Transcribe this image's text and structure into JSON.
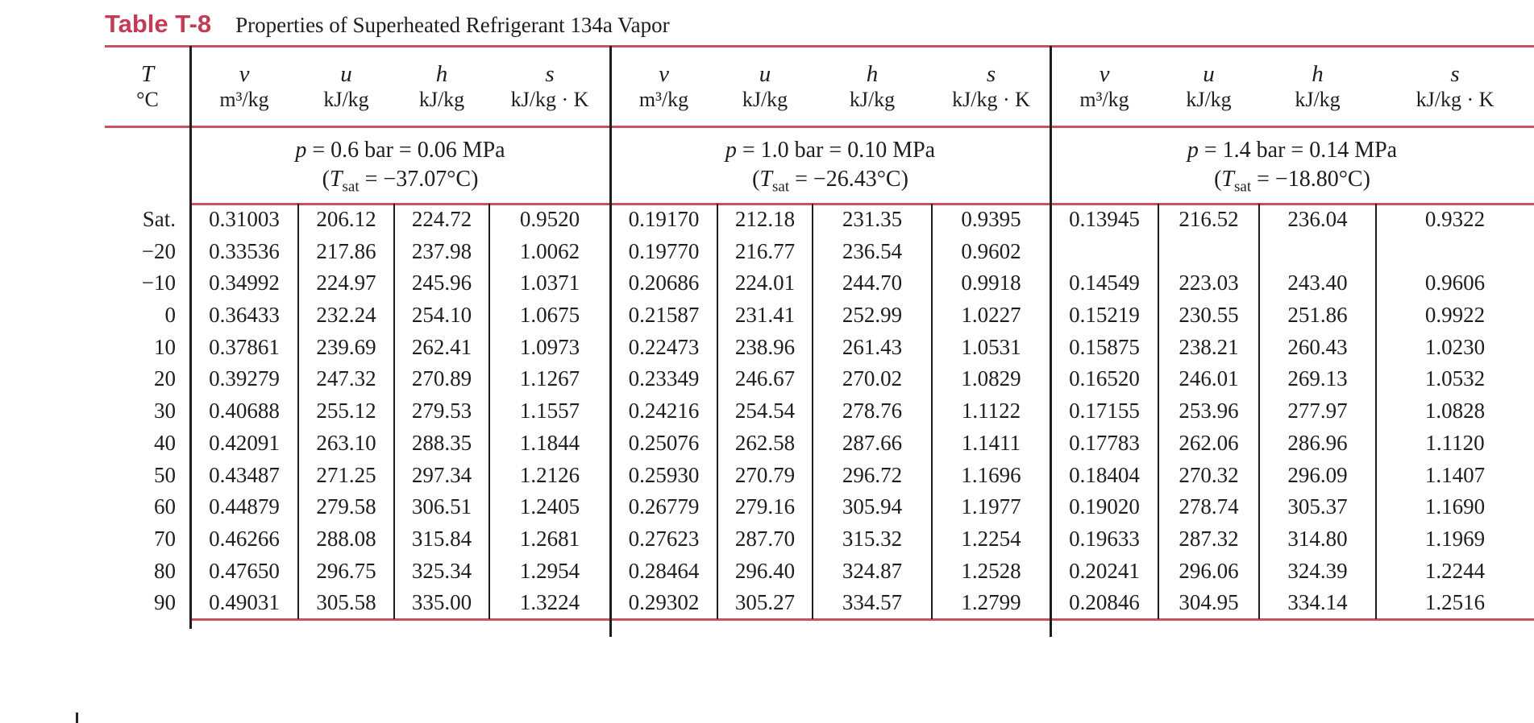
{
  "title": {
    "label": "Table T-8",
    "caption": "Properties of Superheated Refrigerant 134a Vapor"
  },
  "colors": {
    "rule_red": "#c9525f",
    "title_red": "#c43b55",
    "line_black": "#1e1e1e",
    "text": "#1d1d22"
  },
  "header": {
    "t_symbol": "T",
    "t_unit": "°C",
    "property_columns": [
      {
        "symbol": "v",
        "unit": "m³/kg"
      },
      {
        "symbol": "u",
        "unit": "kJ/kg"
      },
      {
        "symbol": "h",
        "unit": "kJ/kg"
      },
      {
        "symbol": "s",
        "unit": "kJ/kg · K"
      }
    ]
  },
  "sections": [
    {
      "p_symbol": "p",
      "p_rest": " = 0.6 bar = 0.06 MPa",
      "t_open": "(",
      "t_symbol": "T",
      "t_sub": "sat",
      "t_rest": " = −37.07°C)"
    },
    {
      "p_symbol": "p",
      "p_rest": " = 1.0 bar = 0.10 MPa",
      "t_open": "(",
      "t_symbol": "T",
      "t_sub": "sat",
      "t_rest": " = −26.43°C)"
    },
    {
      "p_symbol": "p",
      "p_rest": " = 1.4 bar = 0.14 MPa",
      "t_open": "(",
      "t_symbol": "T",
      "t_sub": "sat",
      "t_rest": " = −18.80°C)"
    }
  ],
  "rows": [
    {
      "T": "Sat.",
      "values": [
        [
          "0.31003",
          "206.12",
          "224.72",
          "0.9520"
        ],
        [
          "0.19170",
          "212.18",
          "231.35",
          "0.9395"
        ],
        [
          "0.13945",
          "216.52",
          "236.04",
          "0.9322"
        ]
      ]
    },
    {
      "T": "−20",
      "values": [
        [
          "0.33536",
          "217.86",
          "237.98",
          "1.0062"
        ],
        [
          "0.19770",
          "216.77",
          "236.54",
          "0.9602"
        ],
        [
          "",
          "",
          "",
          ""
        ]
      ]
    },
    {
      "T": "−10",
      "values": [
        [
          "0.34992",
          "224.97",
          "245.96",
          "1.0371"
        ],
        [
          "0.20686",
          "224.01",
          "244.70",
          "0.9918"
        ],
        [
          "0.14549",
          "223.03",
          "243.40",
          "0.9606"
        ]
      ]
    },
    {
      "T": "0",
      "values": [
        [
          "0.36433",
          "232.24",
          "254.10",
          "1.0675"
        ],
        [
          "0.21587",
          "231.41",
          "252.99",
          "1.0227"
        ],
        [
          "0.15219",
          "230.55",
          "251.86",
          "0.9922"
        ]
      ]
    },
    {
      "T": "10",
      "values": [
        [
          "0.37861",
          "239.69",
          "262.41",
          "1.0973"
        ],
        [
          "0.22473",
          "238.96",
          "261.43",
          "1.0531"
        ],
        [
          "0.15875",
          "238.21",
          "260.43",
          "1.0230"
        ]
      ]
    },
    {
      "T": "20",
      "values": [
        [
          "0.39279",
          "247.32",
          "270.89",
          "1.1267"
        ],
        [
          "0.23349",
          "246.67",
          "270.02",
          "1.0829"
        ],
        [
          "0.16520",
          "246.01",
          "269.13",
          "1.0532"
        ]
      ]
    },
    {
      "T": "30",
      "values": [
        [
          "0.40688",
          "255.12",
          "279.53",
          "1.1557"
        ],
        [
          "0.24216",
          "254.54",
          "278.76",
          "1.1122"
        ],
        [
          "0.17155",
          "253.96",
          "277.97",
          "1.0828"
        ]
      ]
    },
    {
      "T": "40",
      "values": [
        [
          "0.42091",
          "263.10",
          "288.35",
          "1.1844"
        ],
        [
          "0.25076",
          "262.58",
          "287.66",
          "1.1411"
        ],
        [
          "0.17783",
          "262.06",
          "286.96",
          "1.1120"
        ]
      ]
    },
    {
      "T": "50",
      "values": [
        [
          "0.43487",
          "271.25",
          "297.34",
          "1.2126"
        ],
        [
          "0.25930",
          "270.79",
          "296.72",
          "1.1696"
        ],
        [
          "0.18404",
          "270.32",
          "296.09",
          "1.1407"
        ]
      ]
    },
    {
      "T": "60",
      "values": [
        [
          "0.44879",
          "279.58",
          "306.51",
          "1.2405"
        ],
        [
          "0.26779",
          "279.16",
          "305.94",
          "1.1977"
        ],
        [
          "0.19020",
          "278.74",
          "305.37",
          "1.1690"
        ]
      ]
    },
    {
      "T": "70",
      "values": [
        [
          "0.46266",
          "288.08",
          "315.84",
          "1.2681"
        ],
        [
          "0.27623",
          "287.70",
          "315.32",
          "1.2254"
        ],
        [
          "0.19633",
          "287.32",
          "314.80",
          "1.1969"
        ]
      ]
    },
    {
      "T": "80",
      "values": [
        [
          "0.47650",
          "296.75",
          "325.34",
          "1.2954"
        ],
        [
          "0.28464",
          "296.40",
          "324.87",
          "1.2528"
        ],
        [
          "0.20241",
          "296.06",
          "324.39",
          "1.2244"
        ]
      ]
    },
    {
      "T": "90",
      "values": [
        [
          "0.49031",
          "305.58",
          "335.00",
          "1.3224"
        ],
        [
          "0.29302",
          "305.27",
          "334.57",
          "1.2799"
        ],
        [
          "0.20846",
          "304.95",
          "334.14",
          "1.2516"
        ]
      ]
    }
  ]
}
